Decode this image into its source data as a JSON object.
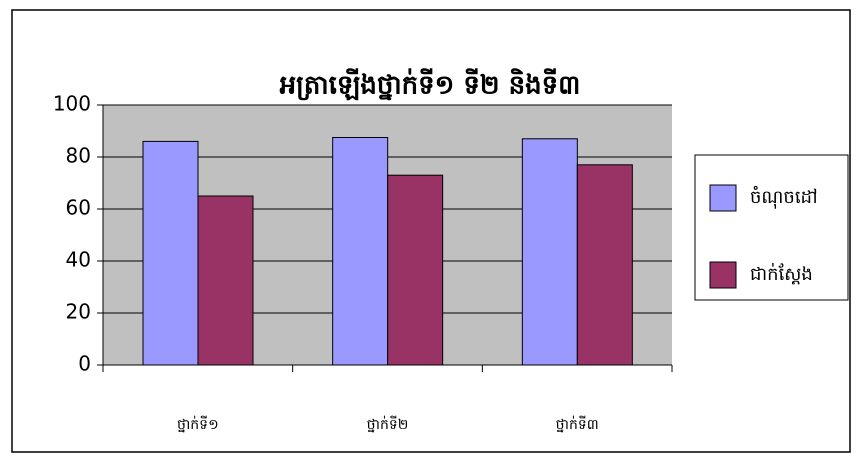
{
  "chart_data": {
    "type": "bar",
    "title": "អត្រាឡើងថ្នាក់ទី១ ទី២ និងទី៣",
    "categories": [
      "ថ្នាក់ទី១",
      "ថ្នាក់ទី២",
      "ថ្នាក់ទី៣"
    ],
    "series": [
      {
        "name": "ចំណុចដៅ",
        "color": "#9999ff",
        "values": [
          86,
          87.5,
          87
        ]
      },
      {
        "name": "ជាក់ស្តែង",
        "color": "#993366",
        "values": [
          65,
          73,
          77
        ]
      }
    ],
    "ylim": [
      0,
      100
    ],
    "yticks": [
      0,
      20,
      40,
      60,
      80,
      100
    ],
    "grid": true,
    "legend": "right"
  }
}
